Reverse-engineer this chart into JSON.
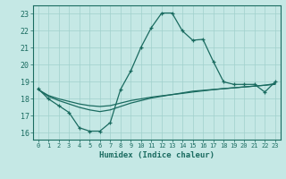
{
  "xlabel": "Humidex (Indice chaleur)",
  "background_color": "#c5e8e5",
  "grid_color": "#a0d0cc",
  "line_color": "#1a6b60",
  "xlim": [
    -0.5,
    23.5
  ],
  "ylim": [
    15.6,
    23.5
  ],
  "xticks": [
    0,
    1,
    2,
    3,
    4,
    5,
    6,
    7,
    8,
    9,
    10,
    11,
    12,
    13,
    14,
    15,
    16,
    17,
    18,
    19,
    20,
    21,
    22,
    23
  ],
  "yticks": [
    16,
    17,
    18,
    19,
    20,
    21,
    22,
    23
  ],
  "x_values": [
    0,
    1,
    2,
    3,
    4,
    5,
    6,
    7,
    8,
    9,
    10,
    11,
    12,
    13,
    14,
    15,
    16,
    17,
    18,
    19,
    20,
    21,
    22,
    23
  ],
  "line1_y": [
    18.6,
    18.0,
    17.6,
    17.2,
    16.3,
    16.1,
    16.1,
    16.6,
    18.55,
    19.65,
    21.05,
    22.2,
    23.05,
    23.05,
    22.0,
    21.45,
    21.5,
    20.2,
    19.0,
    18.85,
    18.85,
    18.85,
    18.4,
    19.0
  ],
  "line2_y": [
    18.55,
    18.15,
    17.9,
    17.7,
    17.5,
    17.35,
    17.25,
    17.35,
    17.55,
    17.75,
    17.9,
    18.05,
    18.15,
    18.25,
    18.35,
    18.45,
    18.5,
    18.55,
    18.6,
    18.65,
    18.7,
    18.75,
    18.8,
    18.85
  ],
  "line3_y": [
    18.55,
    18.2,
    18.0,
    17.85,
    17.7,
    17.6,
    17.55,
    17.6,
    17.75,
    17.9,
    18.0,
    18.1,
    18.18,
    18.25,
    18.32,
    18.4,
    18.47,
    18.54,
    18.6,
    18.65,
    18.7,
    18.75,
    18.8,
    18.9
  ]
}
